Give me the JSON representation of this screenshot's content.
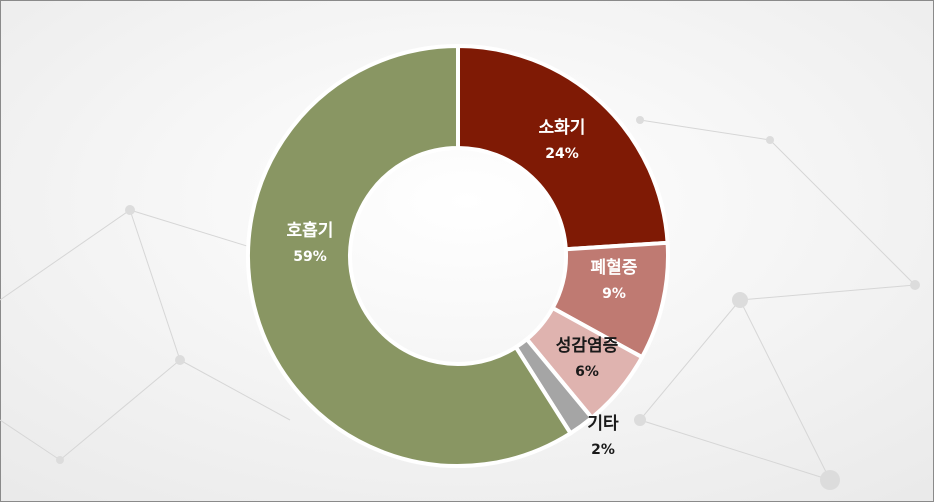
{
  "chart_data": {
    "type": "donut",
    "categories": [
      "소화기",
      "폐혈증",
      "성감염증",
      "기타",
      "호흡기"
    ],
    "values": [
      24,
      9,
      6,
      2,
      59
    ],
    "value_labels": [
      "24%",
      "9%",
      "6%",
      "2%",
      "59%"
    ],
    "colors": [
      "#7f1a05",
      "#bf7a72",
      "#dfb3af",
      "#a5a5a5",
      "#899663"
    ]
  }
}
